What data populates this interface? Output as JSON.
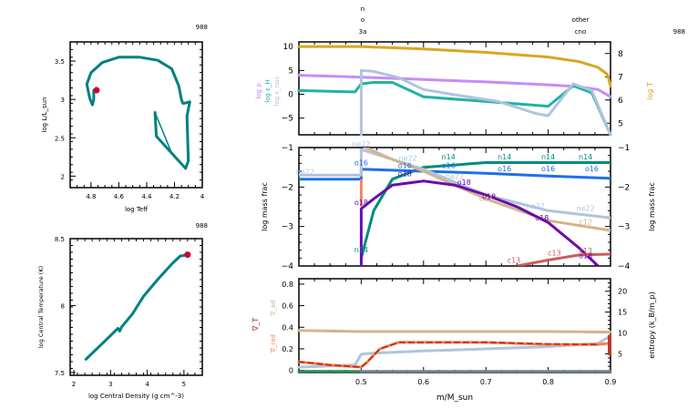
{
  "model_number": "988",
  "hr_panel": {
    "xlabel": "log Teff",
    "ylabel": "log L/L_sun",
    "xlim": [
      4.95,
      4.0
    ],
    "ylim": [
      1.85,
      3.75
    ],
    "xticks": [
      "4.8",
      "4.6",
      "4.4",
      "4.2",
      "4"
    ],
    "yticks": [
      "2",
      "2.5",
      "3",
      "3.5"
    ],
    "track_color": "#008080",
    "marker_color": "#cc0033",
    "track": [
      [
        4.34,
        2.83
      ],
      [
        4.33,
        2.52
      ],
      [
        4.22,
        2.3
      ],
      [
        4.12,
        2.1
      ],
      [
        4.1,
        2.2
      ],
      [
        4.11,
        2.78
      ],
      [
        4.09,
        2.97
      ],
      [
        4.13,
        2.95
      ],
      [
        4.14,
        2.95
      ],
      [
        4.15,
        3.0
      ],
      [
        4.17,
        3.18
      ],
      [
        4.22,
        3.4
      ],
      [
        4.32,
        3.51
      ],
      [
        4.45,
        3.55
      ],
      [
        4.6,
        3.55
      ],
      [
        4.72,
        3.48
      ],
      [
        4.8,
        3.35
      ],
      [
        4.83,
        3.2
      ],
      [
        4.81,
        3.02
      ],
      [
        4.79,
        2.93
      ],
      [
        4.78,
        3.0
      ],
      [
        4.78,
        3.12
      ]
    ],
    "track_inner": [
      [
        4.34,
        2.83
      ],
      [
        4.22,
        2.3
      ]
    ],
    "current_point": [
      4.76,
      3.12
    ]
  },
  "rhoc_tc_panel": {
    "xlabel": "log Central Density (g cm^-3)",
    "ylabel": "log Central Temperature (K)",
    "xlim": [
      1.9,
      5.5
    ],
    "ylim": [
      7.48,
      8.5
    ],
    "xticks": [
      "2",
      "3",
      "4",
      "5"
    ],
    "yticks": [
      "7.5",
      "8",
      "8.5"
    ],
    "track": [
      [
        2.33,
        7.6
      ],
      [
        2.9,
        7.75
      ],
      [
        3.2,
        7.83
      ],
      [
        3.25,
        7.81
      ],
      [
        3.3,
        7.84
      ],
      [
        3.6,
        7.94
      ],
      [
        3.9,
        8.07
      ],
      [
        4.3,
        8.2
      ],
      [
        4.7,
        8.32
      ],
      [
        4.9,
        8.37
      ],
      [
        5.1,
        8.38
      ]
    ],
    "current_point": [
      5.1,
      8.38
    ]
  },
  "top_labels": {
    "burn_left": [
      "n",
      "o",
      "3a"
    ],
    "burn_right": [
      "other",
      "cno"
    ]
  },
  "profile_top": {
    "ylim_left": [
      -8.5,
      11
    ],
    "yticks_left": [
      "10",
      "5",
      "0",
      "−5"
    ],
    "ylim_right": [
      4.5,
      8.5
    ],
    "yticks_right": [
      "8",
      "7",
      "6",
      "5"
    ],
    "ylabel_right": "log T",
    "ylabels_left": [
      {
        "text": "log ρ",
        "color": "#c080ff"
      },
      {
        "text": "log ε_H",
        "color": "#20b0a0"
      },
      {
        "text": "log ε_nuc",
        "color": "#b0c4de"
      }
    ],
    "series": [
      {
        "name": "log T",
        "color": "#daa520",
        "axis": "right",
        "x": [
          0.4,
          0.5,
          0.6,
          0.7,
          0.8,
          0.85,
          0.88,
          0.895,
          0.9
        ],
        "y": [
          8.3,
          8.3,
          8.2,
          8.05,
          7.85,
          7.65,
          7.4,
          7.1,
          6.6
        ]
      },
      {
        "name": "log rho",
        "color": "#c68cf5",
        "axis": "left",
        "x": [
          0.4,
          0.5,
          0.6,
          0.7,
          0.8,
          0.85,
          0.88,
          0.9
        ],
        "y": [
          4.0,
          3.6,
          3.1,
          2.6,
          2.0,
          1.6,
          1.0,
          -0.5
        ]
      },
      {
        "name": "log eps_H",
        "color": "#20b2aa",
        "axis": "left",
        "x": [
          0.4,
          0.49,
          0.5,
          0.52,
          0.55,
          0.6,
          0.7,
          0.8,
          0.8,
          0.84,
          0.87,
          0.9
        ],
        "y": [
          0.8,
          0.5,
          2.2,
          2.5,
          2.5,
          -0.5,
          -1.5,
          -2.5,
          -2.5,
          1.8,
          0.3,
          -8.5
        ]
      },
      {
        "name": "log eps_nuc",
        "color": "#b0c4de",
        "axis": "left",
        "x": [
          0.5,
          0.5,
          0.52,
          0.56,
          0.6,
          0.66,
          0.72,
          0.78,
          0.8,
          0.84,
          0.87,
          0.9
        ],
        "y": [
          -8.5,
          5.0,
          4.8,
          3.5,
          1.0,
          -0.3,
          -1.5,
          -4.0,
          -4.5,
          2.2,
          0.8,
          -8.5
        ]
      }
    ]
  },
  "profile_mid": {
    "ylim": [
      -4,
      -1
    ],
    "yticks": [
      "−1",
      "−2",
      "−3",
      "−4"
    ],
    "ylabel": "log mass frac",
    "series": [
      {
        "name": "n14",
        "color": "#008b80",
        "x": [
          0.5,
          0.52,
          0.55,
          0.6,
          0.7,
          0.8,
          0.9
        ],
        "y": [
          -3.8,
          -2.6,
          -1.8,
          -1.5,
          -1.38,
          -1.38,
          -1.38
        ],
        "labels": [
          [
            0.5,
            -3.65
          ],
          [
            0.64,
            -1.3
          ],
          [
            0.73,
            -1.3
          ],
          [
            0.8,
            -1.3
          ],
          [
            0.86,
            -1.3
          ]
        ]
      },
      {
        "name": "o16",
        "color": "#1e6fe8",
        "x": [
          0.4,
          0.5,
          0.5,
          0.6,
          0.7,
          0.8,
          0.9
        ],
        "y": [
          -1.8,
          -1.8,
          -1.55,
          -1.6,
          -1.65,
          -1.72,
          -1.78
        ],
        "labels": [
          [
            0.5,
            -1.45
          ],
          [
            0.57,
            -1.52
          ],
          [
            0.64,
            -1.52
          ],
          [
            0.73,
            -1.6
          ],
          [
            0.8,
            -1.6
          ],
          [
            0.87,
            -1.6
          ]
        ]
      },
      {
        "name": "ne22",
        "color": "#b0c4de",
        "x": [
          0.4,
          0.5,
          0.5,
          0.6,
          0.7,
          0.8,
          0.9
        ],
        "y": [
          -1.7,
          -1.7,
          -1.05,
          -1.55,
          -2.2,
          -2.6,
          -2.78
        ],
        "labels": [
          [
            0.41,
            -1.68
          ],
          [
            0.5,
            -0.98
          ],
          [
            0.575,
            -1.33
          ],
          [
            0.65,
            -1.8
          ],
          [
            0.78,
            -2.55
          ],
          [
            0.86,
            -2.6
          ]
        ]
      },
      {
        "name": "c12",
        "color": "#d2b48c",
        "x": [
          0.5,
          0.55,
          0.6,
          0.7,
          0.8,
          0.9
        ],
        "y": [
          -0.95,
          -1.3,
          -1.6,
          -2.3,
          -2.85,
          -3.1
        ],
        "labels": [
          [
            0.7,
            -2.35
          ],
          [
            0.86,
            -2.95
          ]
        ]
      },
      {
        "name": "o18",
        "color": "#6a0dad",
        "x": [
          0.5,
          0.5,
          0.52,
          0.55,
          0.6,
          0.65,
          0.7,
          0.75,
          0.8,
          0.85,
          0.88
        ],
        "y": [
          -4,
          -2.55,
          -2.3,
          -1.95,
          -1.85,
          -1.95,
          -2.2,
          -2.5,
          -2.9,
          -3.55,
          -4.0
        ],
        "labels": [
          [
            0.5,
            -2.45
          ],
          [
            0.57,
            -1.73
          ],
          [
            0.665,
            -1.95
          ],
          [
            0.705,
            -2.3
          ],
          [
            0.79,
            -2.85
          ],
          [
            0.86,
            -3.8
          ]
        ]
      },
      {
        "name": "c13",
        "color": "#cd5c5c",
        "x": [
          0.75,
          0.8,
          0.85,
          0.9
        ],
        "y": [
          -4.0,
          -3.85,
          -3.72,
          -3.7
        ],
        "labels": [
          [
            0.745,
            -3.92
          ],
          [
            0.81,
            -3.73
          ],
          [
            0.86,
            -3.68
          ]
        ]
      },
      {
        "name": "h1",
        "color": "#fa8060",
        "x": [
          0.5,
          0.5
        ],
        "y": [
          -1.8,
          -2.5
        ],
        "labels": []
      }
    ]
  },
  "profile_bot": {
    "ylim_left": [
      -0.02,
      0.85
    ],
    "yticks_left": [
      "0.8",
      "0.6",
      "0.4",
      "0.2",
      "0"
    ],
    "ylim_right": [
      0.5,
      23
    ],
    "yticks_right": [
      "20",
      "15",
      "10",
      "5"
    ],
    "ylabel_right": "entropy (k_B/m_p)",
    "ylabels_left": [
      {
        "text": "∇_ad",
        "color": "#d2b48c"
      },
      {
        "text": "∇_T",
        "color": "#a52a2a"
      },
      {
        "text": "∇_rad",
        "color": "#ff7f50"
      }
    ],
    "xlabel": "m/M_sun",
    "xlim": [
      0.4,
      0.9
    ],
    "xticks": [
      "0.5",
      "0.6",
      "0.7",
      "0.8",
      "0.9"
    ],
    "series": [
      {
        "name": "grad_ad",
        "color": "#d2b48c",
        "x": [
          0.4,
          0.5,
          0.6,
          0.7,
          0.8,
          0.9
        ],
        "y": [
          0.37,
          0.36,
          0.36,
          0.36,
          0.36,
          0.355
        ]
      },
      {
        "name": "entropy",
        "color": "#b0c4de",
        "x": [
          0.4,
          0.49,
          0.5,
          0.52,
          0.6,
          0.7,
          0.8,
          0.88,
          0.9
        ],
        "y": [
          0.03,
          0.05,
          0.15,
          0.16,
          0.18,
          0.2,
          0.22,
          0.25,
          0.32
        ]
      },
      {
        "name": "grad_rad",
        "color": "#ff7f50",
        "x": [
          0.4,
          0.45,
          0.5,
          0.51,
          0.53,
          0.56,
          0.6,
          0.7,
          0.8,
          0.88,
          0.895
        ],
        "y": [
          0.08,
          0.05,
          0.03,
          0.08,
          0.2,
          0.26,
          0.26,
          0.26,
          0.24,
          0.24,
          0.25
        ]
      },
      {
        "name": "grad_T",
        "color": "#b22222",
        "x": [
          0.4,
          0.45,
          0.5,
          0.51,
          0.53,
          0.56,
          0.6,
          0.7,
          0.8,
          0.88
        ],
        "y": [
          0.08,
          0.05,
          0.03,
          0.08,
          0.2,
          0.26,
          0.26,
          0.26,
          0.245,
          0.24
        ]
      },
      {
        "name": "mixing_left",
        "color": "#2e8b57",
        "x": [
          0.4,
          0.5
        ],
        "y": [
          -0.01,
          -0.01
        ]
      },
      {
        "name": "mixing_right",
        "color": "#708090",
        "x": [
          0.5,
          0.9
        ],
        "y": [
          -0.01,
          -0.01
        ]
      }
    ]
  }
}
